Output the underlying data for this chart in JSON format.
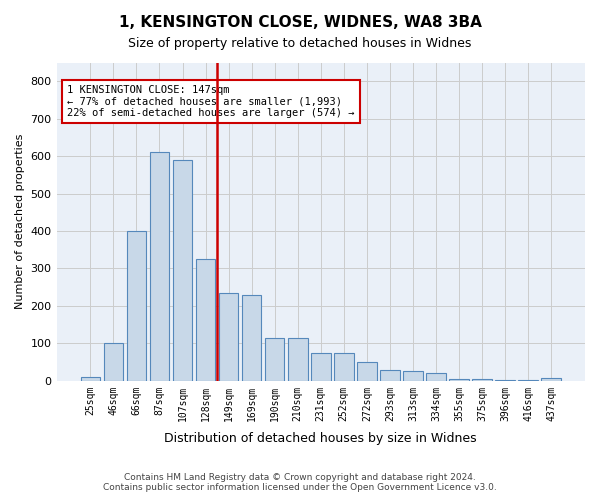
{
  "title": "1, KENSINGTON CLOSE, WIDNES, WA8 3BA",
  "subtitle": "Size of property relative to detached houses in Widnes",
  "xlabel": "Distribution of detached houses by size in Widnes",
  "ylabel": "Number of detached properties",
  "footer_line1": "Contains HM Land Registry data © Crown copyright and database right 2024.",
  "footer_line2": "Contains public sector information licensed under the Open Government Licence v3.0.",
  "bar_labels": [
    "25sqm",
    "46sqm",
    "66sqm",
    "87sqm",
    "107sqm",
    "128sqm",
    "149sqm",
    "169sqm",
    "190sqm",
    "210sqm",
    "231sqm",
    "252sqm",
    "272sqm",
    "293sqm",
    "313sqm",
    "334sqm",
    "355sqm",
    "375sqm",
    "396sqm",
    "416sqm",
    "437sqm"
  ],
  "bar_heights": [
    10,
    100,
    400,
    610,
    590,
    325,
    235,
    230,
    115,
    115,
    75,
    75,
    50,
    30,
    25,
    20,
    5,
    5,
    2,
    2,
    8
  ],
  "bar_color": "#c8d8e8",
  "bar_edgecolor": "#5588bb",
  "grid_color": "#cccccc",
  "background_color": "#eaf0f8",
  "vline_color": "#cc0000",
  "annotation_text": "1 KENSINGTON CLOSE: 147sqm\n← 77% of detached houses are smaller (1,993)\n22% of semi-detached houses are larger (574) →",
  "annotation_box_edgecolor": "#cc0000",
  "ylim": [
    0,
    850
  ],
  "yticks": [
    0,
    100,
    200,
    300,
    400,
    500,
    600,
    700,
    800
  ]
}
